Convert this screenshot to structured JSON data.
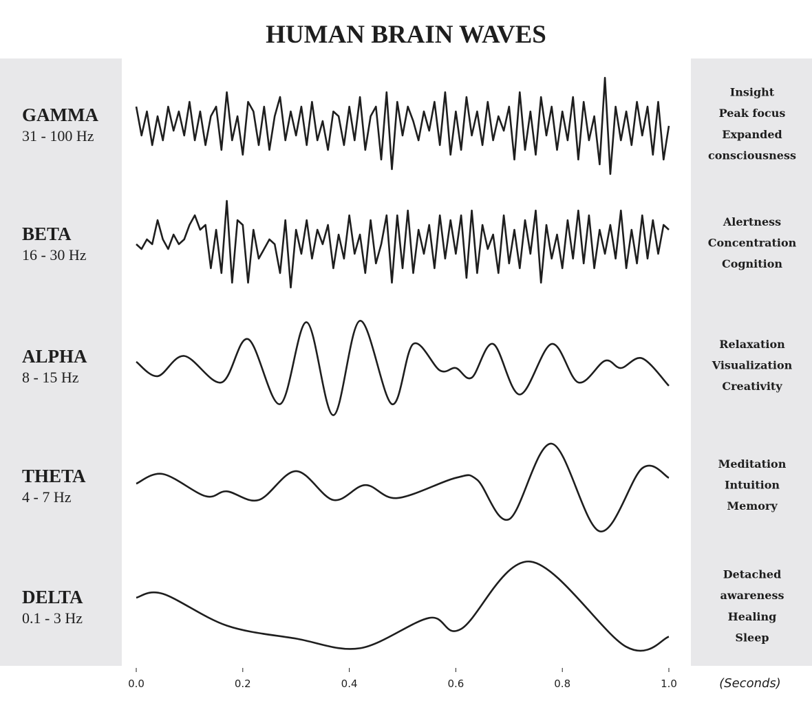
{
  "chart_data": {
    "type": "line",
    "title": "HUMAN BRAIN WAVES",
    "x_label": "(Seconds)",
    "xlim": [
      0,
      1
    ],
    "xticks": [
      {
        "value": 0,
        "label": "0.0"
      },
      0.2,
      0.4,
      0.6,
      0.8,
      {
        "value": 1,
        "label": "1.0"
      }
    ],
    "ylim": [
      -1,
      1
    ],
    "series": [
      {
        "name": "GAMMA",
        "range": "31 - 100 Hz",
        "notes": [
          "Insight",
          "Peak focus",
          "Expanded",
          "consciousness"
        ],
        "color": "#1e1e1e",
        "smooth": false,
        "x": [
          0,
          0.01,
          0.02,
          0.03,
          0.04,
          0.05,
          0.06,
          0.07,
          0.08,
          0.09,
          0.1,
          0.11,
          0.12,
          0.13,
          0.14,
          0.15,
          0.16,
          0.17,
          0.18,
          0.19,
          0.2,
          0.21,
          0.22,
          0.23,
          0.24,
          0.25,
          0.26,
          0.27,
          0.28,
          0.29,
          0.3,
          0.31,
          0.32,
          0.33,
          0.34,
          0.35,
          0.36,
          0.37,
          0.38,
          0.39,
          0.4,
          0.41,
          0.42,
          0.43,
          0.44,
          0.45,
          0.46,
          0.47,
          0.48,
          0.49,
          0.5,
          0.51,
          0.52,
          0.53,
          0.54,
          0.55,
          0.56,
          0.57,
          0.58,
          0.59,
          0.6,
          0.61,
          0.62,
          0.63,
          0.64,
          0.65,
          0.66,
          0.67,
          0.68,
          0.69,
          0.7,
          0.71,
          0.72,
          0.73,
          0.74,
          0.75,
          0.76,
          0.77,
          0.78,
          0.79,
          0.8,
          0.81,
          0.82,
          0.83,
          0.84,
          0.85,
          0.86,
          0.87,
          0.88,
          0.89,
          0.9,
          0.91,
          0.92,
          0.93,
          0.94,
          0.95,
          0.96,
          0.97,
          0.98,
          0.99,
          1
        ],
        "values": [
          0.4,
          -0.2,
          0.3,
          -0.4,
          0.2,
          -0.3,
          0.4,
          -0.1,
          0.3,
          -0.2,
          0.5,
          -0.3,
          0.3,
          -0.4,
          0.2,
          0.4,
          -0.5,
          0.7,
          -0.3,
          0.2,
          -0.6,
          0.5,
          0.3,
          -0.4,
          0.4,
          -0.5,
          0.2,
          0.6,
          -0.3,
          0.3,
          -0.2,
          0.4,
          -0.4,
          0.5,
          -0.3,
          0.1,
          -0.5,
          0.3,
          0.2,
          -0.4,
          0.4,
          -0.3,
          0.6,
          -0.5,
          0.2,
          0.4,
          -0.7,
          0.7,
          -0.9,
          0.5,
          -0.2,
          0.4,
          0.1,
          -0.3,
          0.3,
          -0.1,
          0.5,
          -0.4,
          0.7,
          -0.6,
          0.3,
          -0.5,
          0.6,
          -0.2,
          0.3,
          -0.4,
          0.5,
          -0.3,
          0.2,
          -0.1,
          0.4,
          -0.7,
          0.7,
          -0.5,
          0.3,
          -0.6,
          0.6,
          -0.2,
          0.4,
          -0.5,
          0.3,
          -0.3,
          0.6,
          -0.7,
          0.5,
          -0.3,
          0.2,
          -0.8,
          1.0,
          -1.0,
          0.4,
          -0.3,
          0.3,
          -0.4,
          0.5,
          -0.2,
          0.4,
          -0.6,
          0.5,
          -0.7,
          0.0
        ]
      },
      {
        "name": "BETA",
        "range": "16 - 30 Hz",
        "notes": [
          "Alertness",
          "Concentration",
          "Cognition"
        ],
        "color": "#1e1e1e",
        "smooth": false,
        "x": [
          0,
          0.01,
          0.02,
          0.03,
          0.04,
          0.05,
          0.06,
          0.07,
          0.08,
          0.09,
          0.1,
          0.11,
          0.12,
          0.13,
          0.14,
          0.15,
          0.16,
          0.17,
          0.18,
          0.19,
          0.2,
          0.21,
          0.22,
          0.23,
          0.24,
          0.25,
          0.26,
          0.27,
          0.28,
          0.29,
          0.3,
          0.31,
          0.32,
          0.33,
          0.34,
          0.35,
          0.36,
          0.37,
          0.38,
          0.39,
          0.4,
          0.41,
          0.42,
          0.43,
          0.44,
          0.45,
          0.46,
          0.47,
          0.48,
          0.49,
          0.5,
          0.51,
          0.52,
          0.53,
          0.54,
          0.55,
          0.56,
          0.57,
          0.58,
          0.59,
          0.6,
          0.61,
          0.62,
          0.63,
          0.64,
          0.65,
          0.66,
          0.67,
          0.68,
          0.69,
          0.7,
          0.71,
          0.72,
          0.73,
          0.74,
          0.75,
          0.76,
          0.77,
          0.78,
          0.79,
          0.8,
          0.81,
          0.82,
          0.83,
          0.84,
          0.85,
          0.86,
          0.87,
          0.88,
          0.89,
          0.9,
          0.91,
          0.92,
          0.93,
          0.94,
          0.95,
          0.96,
          0.97,
          0.98,
          0.99,
          1
        ],
        "values": [
          0.0,
          -0.1,
          0.1,
          0.0,
          0.5,
          0.1,
          -0.1,
          0.2,
          0.0,
          0.1,
          0.4,
          0.6,
          0.3,
          0.4,
          -0.5,
          0.3,
          -0.6,
          0.9,
          -0.8,
          0.5,
          0.4,
          -0.8,
          0.3,
          -0.3,
          -0.1,
          0.1,
          0.0,
          -0.6,
          0.5,
          -0.9,
          0.3,
          -0.2,
          0.5,
          -0.3,
          0.3,
          0.0,
          0.4,
          -0.5,
          0.2,
          -0.3,
          0.6,
          -0.2,
          0.2,
          -0.6,
          0.5,
          -0.4,
          0.0,
          0.6,
          -0.8,
          0.6,
          -0.5,
          0.7,
          -0.6,
          0.3,
          -0.2,
          0.4,
          -0.5,
          0.6,
          -0.3,
          0.5,
          -0.2,
          0.6,
          -0.7,
          0.7,
          -0.6,
          0.4,
          -0.1,
          0.2,
          -0.6,
          0.6,
          -0.4,
          0.3,
          -0.5,
          0.5,
          -0.2,
          0.7,
          -0.8,
          0.4,
          -0.3,
          0.2,
          -0.5,
          0.5,
          -0.3,
          0.7,
          -0.4,
          0.6,
          -0.5,
          0.3,
          -0.2,
          0.4,
          -0.3,
          0.7,
          -0.5,
          0.3,
          -0.4,
          0.6,
          -0.3,
          0.5,
          -0.2,
          0.4,
          0.3
        ]
      },
      {
        "name": "ALPHA",
        "range": "8 - 15 Hz",
        "notes": [
          "Relaxation",
          "Visualization",
          "Creativity"
        ],
        "color": "#1e1e1e",
        "smooth": true,
        "x": [
          0,
          0.04,
          0.09,
          0.16,
          0.21,
          0.27,
          0.32,
          0.37,
          0.42,
          0.48,
          0.52,
          0.57,
          0.6,
          0.63,
          0.67,
          0.72,
          0.78,
          0.83,
          0.88,
          0.91,
          0.95,
          1
        ],
        "values": [
          0.13,
          -0.17,
          0.25,
          -0.3,
          0.6,
          -0.75,
          0.95,
          -0.98,
          0.98,
          -0.75,
          0.5,
          -0.05,
          0.0,
          -0.2,
          0.5,
          -0.55,
          0.5,
          -0.3,
          0.15,
          0.0,
          0.2,
          -0.37
        ]
      },
      {
        "name": "THETA",
        "range": "4 - 7 Hz",
        "notes": [
          "Meditation",
          "Intuition",
          "Memory"
        ],
        "color": "#1e1e1e",
        "smooth": true,
        "x": [
          0,
          0.05,
          0.13,
          0.17,
          0.23,
          0.3,
          0.37,
          0.43,
          0.49,
          0.6,
          0.64,
          0.7,
          0.78,
          0.87,
          0.95,
          1
        ],
        "values": [
          0.07,
          0.27,
          -0.19,
          -0.09,
          -0.27,
          0.33,
          -0.27,
          0.04,
          -0.23,
          0.19,
          0.15,
          -0.67,
          0.9,
          -0.92,
          0.39,
          0.19
        ]
      },
      {
        "name": "DELTA",
        "range": "0.1 - 3 Hz",
        "notes": [
          "Detached",
          "awareness",
          "Healing",
          "Sleep"
        ],
        "color": "#1e1e1e",
        "smooth": true,
        "x": [
          0,
          0.05,
          0.17,
          0.3,
          0.42,
          0.55,
          0.61,
          0.74,
          0.92,
          1
        ],
        "values": [
          0.13,
          0.21,
          -0.45,
          -0.72,
          -0.92,
          -0.29,
          -0.52,
          0.88,
          -0.89,
          -0.68
        ]
      }
    ]
  }
}
